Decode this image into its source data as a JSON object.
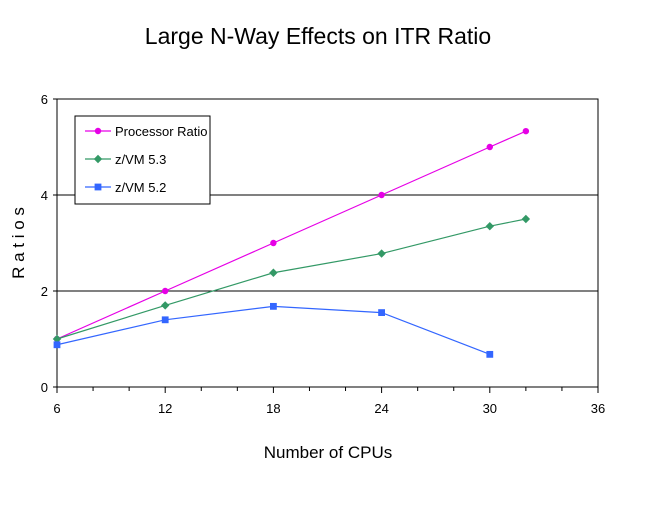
{
  "chart_data": {
    "type": "line",
    "title": "Large N-Way Effects on ITR Ratio",
    "xlabel": "Number of CPUs",
    "ylabel": "R a t i o s",
    "xlim": [
      6,
      36
    ],
    "ylim": [
      0,
      6
    ],
    "xticks": [
      "6",
      "12",
      "18",
      "24",
      "30",
      "36"
    ],
    "yticks": [
      "0",
      "2",
      "4",
      "6"
    ],
    "x_minor_step": 2,
    "grid": "horizontal major gridlines",
    "legend_position": "top-left",
    "series": [
      {
        "name": "Processor Ratio",
        "color": "#e600e6",
        "marker": "circle",
        "x": [
          6,
          12,
          18,
          24,
          30,
          32
        ],
        "values": [
          1.0,
          2.0,
          3.0,
          4.0,
          5.0,
          5.33
        ]
      },
      {
        "name": "z/VM 5.3",
        "color": "#339966",
        "marker": "diamond",
        "x": [
          6,
          12,
          18,
          24,
          30,
          32
        ],
        "values": [
          1.0,
          1.7,
          2.38,
          2.78,
          3.35,
          3.5
        ]
      },
      {
        "name": "z/VM 5.2",
        "color": "#3366ff",
        "marker": "square",
        "x": [
          6,
          12,
          18,
          24,
          30
        ],
        "values": [
          0.88,
          1.4,
          1.68,
          1.55,
          0.68
        ]
      }
    ]
  }
}
